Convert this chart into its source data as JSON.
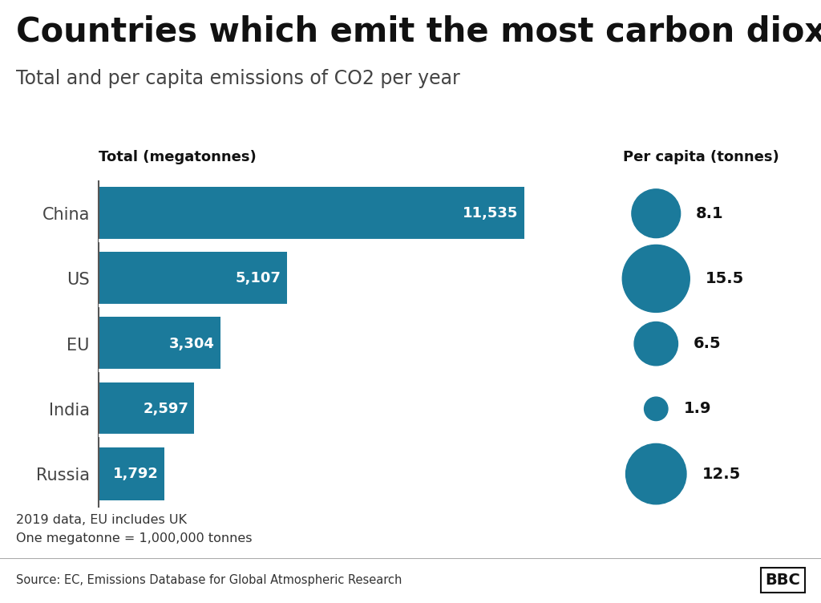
{
  "title": "Countries which emit the most carbon dioxide",
  "subtitle": "Total and per capita emissions of CO2 per year",
  "countries": [
    "China",
    "US",
    "EU",
    "India",
    "Russia"
  ],
  "total_values": [
    11535,
    5107,
    3304,
    2597,
    1792
  ],
  "total_labels": [
    "11,535",
    "5,107",
    "3,304",
    "2,597",
    "1,792"
  ],
  "per_capita_values": [
    8.1,
    15.5,
    6.5,
    1.9,
    12.5
  ],
  "per_capita_labels": [
    "8.1",
    "15.5",
    "6.5",
    "1.9",
    "12.5"
  ],
  "bar_color": "#1b7a9b",
  "bubble_color": "#1b7a9b",
  "background_color": "#ffffff",
  "bar_label_fontsize": 13,
  "country_label_fontsize": 15,
  "axis_label_fontsize": 13,
  "title_fontsize": 30,
  "subtitle_fontsize": 17,
  "footer_note": "2019 data, EU includes UK\nOne megatonne = 1,000,000 tonnes",
  "source_text": "Source: EC, Emissions Database for Global Atmospheric Research",
  "bbc_text": "BBC",
  "total_header": "Total (megatonnes)",
  "per_capita_header": "Per capita (tonnes)",
  "xlim_max": 13000,
  "bar_height": 0.82,
  "separator_color": "#ffffff",
  "separator_lw": 3.0,
  "source_bg": "#e0e0e0",
  "spine_color": "#555555"
}
